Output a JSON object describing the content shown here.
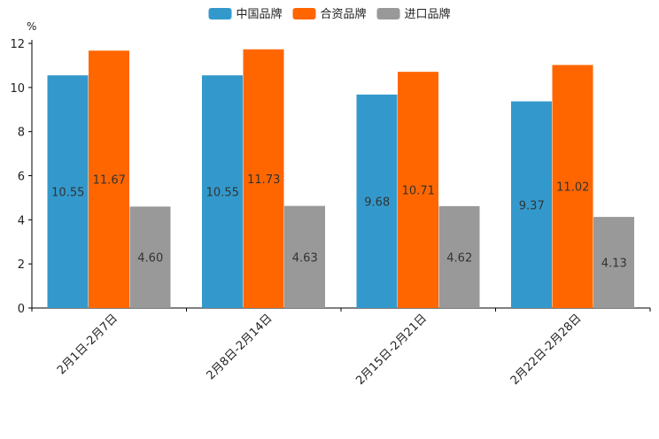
{
  "chart_data": {
    "type": "bar",
    "title": "",
    "xlabel": "",
    "ylabel": "%",
    "ylim": [
      0,
      12
    ],
    "yticks": [
      0,
      2,
      4,
      6,
      8,
      10,
      12
    ],
    "grid": false,
    "legend_position": "top-center",
    "categories": [
      "2月1日-2月7日",
      "2月8日-2月14日",
      "2月15日-2月21日",
      "2月22日-2月28日"
    ],
    "series": [
      {
        "name": "中国品牌",
        "color": "#3399cc",
        "values": [
          10.55,
          10.55,
          9.68,
          9.37
        ]
      },
      {
        "name": "合资品牌",
        "color": "#ff6600",
        "values": [
          11.67,
          11.73,
          10.71,
          11.02
        ]
      },
      {
        "name": "进口品牌",
        "color": "#999999",
        "values": [
          4.6,
          4.63,
          4.62,
          4.13
        ]
      }
    ]
  }
}
